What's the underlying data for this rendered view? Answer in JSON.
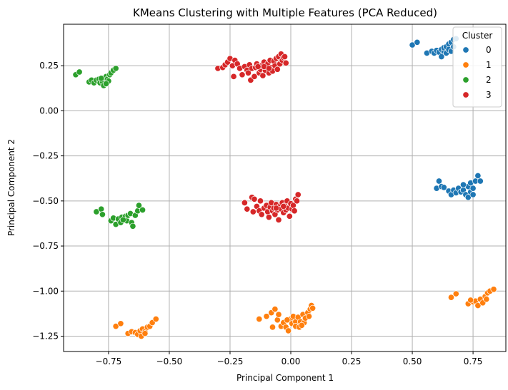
{
  "chart_data": {
    "type": "scatter",
    "title": "KMeans Clustering with Multiple Features (PCA Reduced)",
    "xlabel": "Principal Component 1",
    "ylabel": "Principal Component 2",
    "xlim": [
      -0.935,
      0.885
    ],
    "ylim": [
      -1.335,
      0.48
    ],
    "xticks": [
      -0.75,
      -0.5,
      -0.25,
      0.0,
      0.25,
      0.5,
      0.75
    ],
    "xtick_labels": [
      "−0.75",
      "−0.50",
      "−0.25",
      "0.00",
      "0.25",
      "0.50",
      "0.75"
    ],
    "yticks": [
      0.25,
      0.0,
      -0.25,
      -0.5,
      -0.75,
      -1.0,
      -1.25
    ],
    "ytick_labels": [
      "0.25",
      "0.00",
      "−0.25",
      "−0.50",
      "−0.75",
      "−1.00",
      "−1.25"
    ],
    "grid": true,
    "legend": {
      "title": "Cluster",
      "placement": "top-right",
      "entries": [
        "0",
        "1",
        "2",
        "3"
      ]
    },
    "series": [
      {
        "name": "0",
        "color": "#1f77b4",
        "points": [
          [
            0.5,
            0.365
          ],
          [
            0.52,
            0.38
          ],
          [
            0.56,
            0.32
          ],
          [
            0.58,
            0.33
          ],
          [
            0.59,
            0.32
          ],
          [
            0.6,
            0.335
          ],
          [
            0.61,
            0.325
          ],
          [
            0.62,
            0.3
          ],
          [
            0.62,
            0.34
          ],
          [
            0.63,
            0.33
          ],
          [
            0.63,
            0.35
          ],
          [
            0.64,
            0.355
          ],
          [
            0.64,
            0.32
          ],
          [
            0.65,
            0.37
          ],
          [
            0.65,
            0.34
          ],
          [
            0.66,
            0.38
          ],
          [
            0.67,
            0.395
          ],
          [
            0.68,
            0.4
          ],
          [
            0.66,
            0.33
          ],
          [
            0.67,
            0.355
          ],
          [
            0.6,
            -0.43
          ],
          [
            0.61,
            -0.39
          ],
          [
            0.62,
            -0.42
          ],
          [
            0.63,
            -0.425
          ],
          [
            0.65,
            -0.445
          ],
          [
            0.66,
            -0.465
          ],
          [
            0.67,
            -0.44
          ],
          [
            0.68,
            -0.455
          ],
          [
            0.69,
            -0.43
          ],
          [
            0.7,
            -0.45
          ],
          [
            0.71,
            -0.44
          ],
          [
            0.72,
            -0.465
          ],
          [
            0.73,
            -0.48
          ],
          [
            0.73,
            -0.42
          ],
          [
            0.74,
            -0.45
          ],
          [
            0.74,
            -0.4
          ],
          [
            0.75,
            -0.43
          ],
          [
            0.76,
            -0.39
          ],
          [
            0.77,
            -0.36
          ],
          [
            0.78,
            -0.39
          ],
          [
            0.71,
            -0.41
          ],
          [
            0.75,
            -0.465
          ]
        ]
      },
      {
        "name": "1",
        "color": "#ff7f0e",
        "points": [
          [
            -0.72,
            -1.195
          ],
          [
            -0.7,
            -1.18
          ],
          [
            -0.67,
            -1.235
          ],
          [
            -0.655,
            -1.225
          ],
          [
            -0.64,
            -1.23
          ],
          [
            -0.63,
            -1.24
          ],
          [
            -0.62,
            -1.22
          ],
          [
            -0.615,
            -1.25
          ],
          [
            -0.61,
            -1.21
          ],
          [
            -0.6,
            -1.225
          ],
          [
            -0.59,
            -1.2
          ],
          [
            -0.58,
            -1.195
          ],
          [
            -0.57,
            -1.175
          ],
          [
            -0.555,
            -1.155
          ],
          [
            -0.6,
            -1.235
          ],
          [
            -0.13,
            -1.155
          ],
          [
            -0.1,
            -1.14
          ],
          [
            -0.08,
            -1.12
          ],
          [
            -0.075,
            -1.2
          ],
          [
            -0.065,
            -1.1
          ],
          [
            -0.055,
            -1.16
          ],
          [
            -0.05,
            -1.13
          ],
          [
            -0.04,
            -1.195
          ],
          [
            -0.03,
            -1.175
          ],
          [
            -0.02,
            -1.2
          ],
          [
            -0.01,
            -1.22
          ],
          [
            0.0,
            -1.155
          ],
          [
            0.005,
            -1.18
          ],
          [
            0.01,
            -1.14
          ],
          [
            0.02,
            -1.17
          ],
          [
            0.02,
            -1.195
          ],
          [
            0.03,
            -1.145
          ],
          [
            0.035,
            -1.2
          ],
          [
            0.04,
            -1.17
          ],
          [
            0.05,
            -1.13
          ],
          [
            0.055,
            -1.175
          ],
          [
            0.06,
            -1.15
          ],
          [
            0.07,
            -1.12
          ],
          [
            0.075,
            -1.14
          ],
          [
            0.08,
            -1.1
          ],
          [
            0.085,
            -1.08
          ],
          [
            0.09,
            -1.095
          ],
          [
            -0.015,
            -1.16
          ],
          [
            0.045,
            -1.19
          ],
          [
            0.66,
            -1.035
          ],
          [
            0.68,
            -1.015
          ],
          [
            0.73,
            -1.07
          ],
          [
            0.75,
            -1.06
          ],
          [
            0.76,
            -1.055
          ],
          [
            0.77,
            -1.08
          ],
          [
            0.78,
            -1.045
          ],
          [
            0.79,
            -1.065
          ],
          [
            0.8,
            -1.03
          ],
          [
            0.805,
            -1.045
          ],
          [
            0.81,
            -1.01
          ],
          [
            0.82,
            -1.0
          ],
          [
            0.835,
            -0.99
          ],
          [
            0.74,
            -1.05
          ]
        ]
      },
      {
        "name": "2",
        "color": "#2ca02c",
        "points": [
          [
            -0.885,
            0.2
          ],
          [
            -0.87,
            0.215
          ],
          [
            -0.83,
            0.16
          ],
          [
            -0.82,
            0.17
          ],
          [
            -0.81,
            0.155
          ],
          [
            -0.8,
            0.17
          ],
          [
            -0.79,
            0.175
          ],
          [
            -0.785,
            0.155
          ],
          [
            -0.775,
            0.16
          ],
          [
            -0.77,
            0.14
          ],
          [
            -0.765,
            0.18
          ],
          [
            -0.76,
            0.19
          ],
          [
            -0.755,
            0.175
          ],
          [
            -0.75,
            0.165
          ],
          [
            -0.745,
            0.2
          ],
          [
            -0.74,
            0.21
          ],
          [
            -0.73,
            0.225
          ],
          [
            -0.72,
            0.235
          ],
          [
            -0.78,
            0.18
          ],
          [
            -0.76,
            0.15
          ],
          [
            -0.8,
            -0.56
          ],
          [
            -0.78,
            -0.545
          ],
          [
            -0.775,
            -0.575
          ],
          [
            -0.74,
            -0.61
          ],
          [
            -0.73,
            -0.595
          ],
          [
            -0.72,
            -0.63
          ],
          [
            -0.71,
            -0.6
          ],
          [
            -0.7,
            -0.62
          ],
          [
            -0.695,
            -0.59
          ],
          [
            -0.68,
            -0.585
          ],
          [
            -0.675,
            -0.61
          ],
          [
            -0.67,
            -0.58
          ],
          [
            -0.66,
            -0.57
          ],
          [
            -0.655,
            -0.62
          ],
          [
            -0.65,
            -0.64
          ],
          [
            -0.64,
            -0.58
          ],
          [
            -0.63,
            -0.555
          ],
          [
            -0.625,
            -0.525
          ],
          [
            -0.61,
            -0.55
          ],
          [
            -0.69,
            -0.605
          ]
        ]
      },
      {
        "name": "3",
        "color": "#d62728",
        "points": [
          [
            -0.3,
            0.235
          ],
          [
            -0.28,
            0.24
          ],
          [
            -0.27,
            0.255
          ],
          [
            -0.26,
            0.27
          ],
          [
            -0.25,
            0.29
          ],
          [
            -0.24,
            0.25
          ],
          [
            -0.235,
            0.19
          ],
          [
            -0.23,
            0.28
          ],
          [
            -0.22,
            0.26
          ],
          [
            -0.21,
            0.235
          ],
          [
            -0.2,
            0.2
          ],
          [
            -0.19,
            0.245
          ],
          [
            -0.18,
            0.225
          ],
          [
            -0.175,
            0.21
          ],
          [
            -0.17,
            0.255
          ],
          [
            -0.165,
            0.17
          ],
          [
            -0.16,
            0.235
          ],
          [
            -0.15,
            0.19
          ],
          [
            -0.145,
            0.24
          ],
          [
            -0.14,
            0.26
          ],
          [
            -0.13,
            0.21
          ],
          [
            -0.125,
            0.23
          ],
          [
            -0.12,
            0.25
          ],
          [
            -0.115,
            0.195
          ],
          [
            -0.11,
            0.27
          ],
          [
            -0.105,
            0.225
          ],
          [
            -0.1,
            0.245
          ],
          [
            -0.095,
            0.26
          ],
          [
            -0.09,
            0.21
          ],
          [
            -0.085,
            0.28
          ],
          [
            -0.08,
            0.24
          ],
          [
            -0.075,
            0.22
          ],
          [
            -0.07,
            0.275
          ],
          [
            -0.065,
            0.25
          ],
          [
            -0.06,
            0.29
          ],
          [
            -0.055,
            0.23
          ],
          [
            -0.05,
            0.3
          ],
          [
            -0.045,
            0.26
          ],
          [
            -0.04,
            0.315
          ],
          [
            -0.035,
            0.28
          ],
          [
            -0.03,
            0.295
          ],
          [
            -0.025,
            0.3
          ],
          [
            -0.02,
            0.265
          ],
          [
            -0.135,
            0.245
          ],
          [
            -0.11,
            0.245
          ],
          [
            -0.09,
            0.235
          ],
          [
            -0.19,
            -0.51
          ],
          [
            -0.18,
            -0.545
          ],
          [
            -0.16,
            -0.48
          ],
          [
            -0.155,
            -0.56
          ],
          [
            -0.15,
            -0.49
          ],
          [
            -0.14,
            -0.53
          ],
          [
            -0.13,
            -0.555
          ],
          [
            -0.125,
            -0.5
          ],
          [
            -0.12,
            -0.575
          ],
          [
            -0.11,
            -0.54
          ],
          [
            -0.1,
            -0.525
          ],
          [
            -0.095,
            -0.56
          ],
          [
            -0.09,
            -0.59
          ],
          [
            -0.085,
            -0.535
          ],
          [
            -0.08,
            -0.51
          ],
          [
            -0.075,
            -0.555
          ],
          [
            -0.07,
            -0.54
          ],
          [
            -0.065,
            -0.575
          ],
          [
            -0.06,
            -0.52
          ],
          [
            -0.055,
            -0.55
          ],
          [
            -0.05,
            -0.605
          ],
          [
            -0.045,
            -0.53
          ],
          [
            -0.04,
            -0.545
          ],
          [
            -0.035,
            -0.51
          ],
          [
            -0.03,
            -0.565
          ],
          [
            -0.025,
            -0.525
          ],
          [
            -0.02,
            -0.55
          ],
          [
            -0.015,
            -0.5
          ],
          [
            -0.01,
            -0.54
          ],
          [
            -0.005,
            -0.585
          ],
          [
            0.0,
            -0.515
          ],
          [
            0.005,
            -0.545
          ],
          [
            0.01,
            -0.525
          ],
          [
            0.015,
            -0.555
          ],
          [
            0.02,
            -0.49
          ],
          [
            0.025,
            -0.5
          ],
          [
            0.03,
            -0.465
          ],
          [
            -0.06,
            -0.54
          ],
          [
            -0.03,
            -0.53
          ]
        ]
      }
    ]
  }
}
